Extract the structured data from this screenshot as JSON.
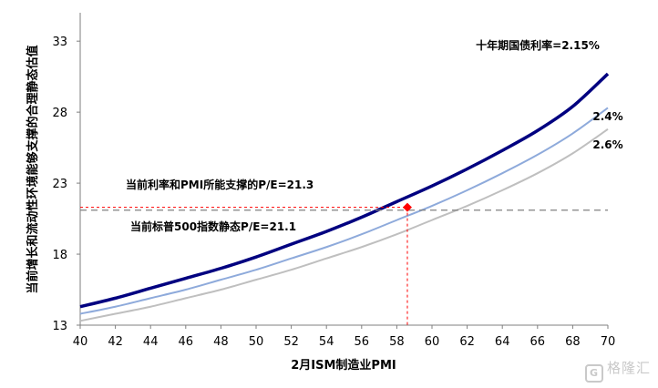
{
  "chart_data": {
    "type": "line",
    "xlabel": "2月ISM制造业PMI",
    "ylabel": "当前增长和流动性环境能够支撑的合理静态估值",
    "xlim": [
      40,
      70
    ],
    "ylim": [
      13,
      35
    ],
    "x_ticks": [
      "40",
      "42",
      "44",
      "46",
      "48",
      "50",
      "52",
      "54",
      "56",
      "58",
      "60",
      "62",
      "64",
      "66",
      "68",
      "70"
    ],
    "y_ticks": [
      "13",
      "18",
      "23",
      "28",
      "33"
    ],
    "grid": false,
    "x": [
      40,
      42,
      44,
      46,
      48,
      50,
      52,
      54,
      56,
      58,
      60,
      62,
      64,
      66,
      68,
      70
    ],
    "series": [
      {
        "name": "十年期国债利率=2.15%",
        "color": "#000080",
        "values": [
          14.3,
          14.9,
          15.6,
          16.3,
          17.0,
          17.8,
          18.7,
          19.6,
          20.6,
          21.7,
          22.8,
          24.0,
          25.3,
          26.7,
          28.4,
          30.7
        ]
      },
      {
        "name": "2.4%",
        "color": "#8eaadb",
        "values": [
          13.8,
          14.3,
          14.9,
          15.5,
          16.2,
          16.9,
          17.7,
          18.5,
          19.4,
          20.4,
          21.4,
          22.5,
          23.7,
          25.0,
          26.5,
          28.3
        ]
      },
      {
        "name": "2.6%",
        "color": "#bfbfbf",
        "values": [
          13.3,
          13.8,
          14.3,
          14.9,
          15.5,
          16.2,
          16.9,
          17.7,
          18.5,
          19.4,
          20.4,
          21.4,
          22.5,
          23.7,
          25.1,
          26.8
        ]
      }
    ],
    "current_point": {
      "x": 58.6,
      "y": 21.3,
      "color": "#ff0000"
    },
    "reference_line": {
      "y": 21.1,
      "color": "#808080"
    },
    "annotations": {
      "current_pe": "当前利率和PMI所能支撑的P/E=21.3",
      "sp500_pe": "当前标普500指数静态P/E=21.1"
    }
  },
  "watermark": {
    "logo": "G",
    "text": "格隆汇"
  }
}
